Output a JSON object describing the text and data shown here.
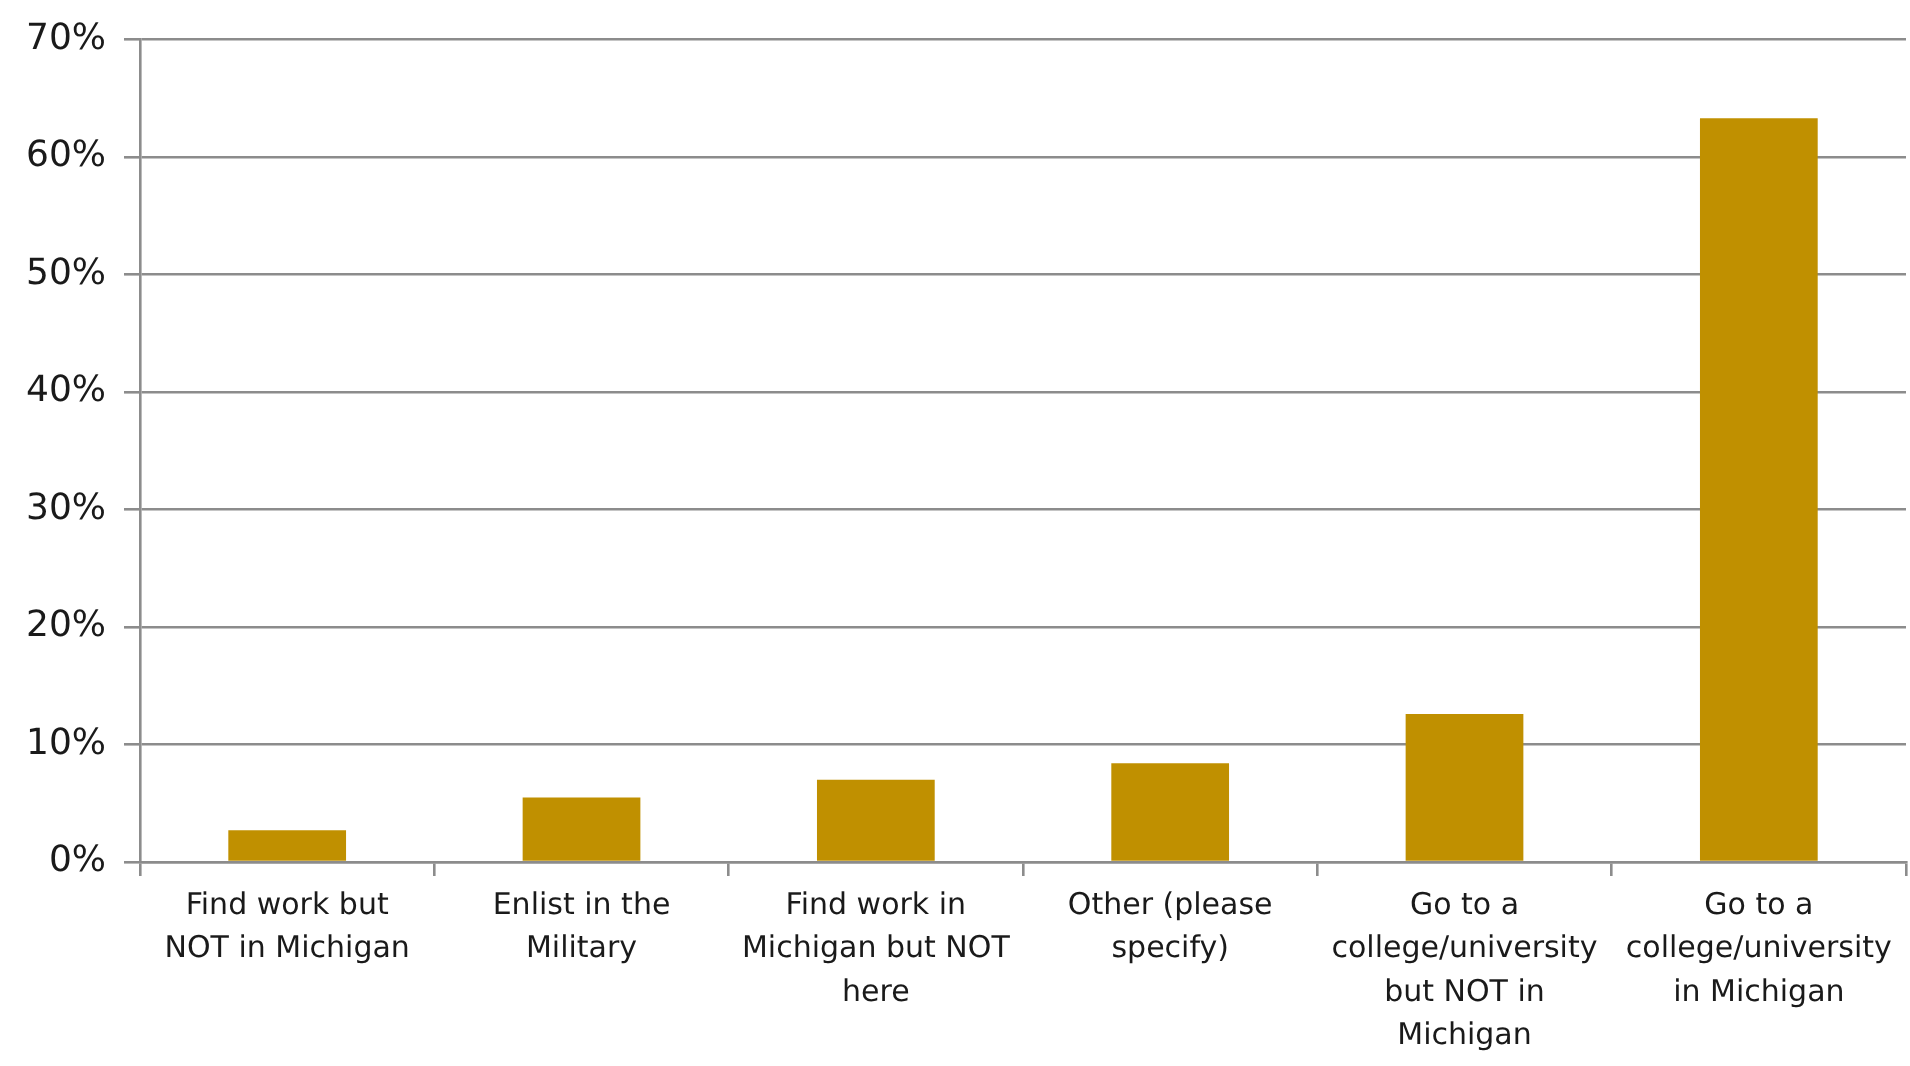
{
  "chart_data": {
    "type": "bar",
    "categories": [
      "Find work but NOT in Michigan",
      "Enlist in the Military",
      "Find work in Michigan but NOT here",
      "Other (please specify)",
      "Go to a college/university but NOT in Michigan",
      "Go to a college/university in Michigan"
    ],
    "values": [
      2.7,
      5.5,
      7.0,
      8.4,
      12.6,
      63.3
    ],
    "color": "#c09000",
    "ylim": [
      0,
      70
    ],
    "yticks": [
      {
        "value": 0,
        "label": "0%"
      },
      {
        "value": 10,
        "label": "10%"
      },
      {
        "value": 20,
        "label": "20%"
      },
      {
        "value": 30,
        "label": "30%"
      },
      {
        "value": 40,
        "label": "40%"
      },
      {
        "value": 50,
        "label": "50%"
      },
      {
        "value": 60,
        "label": "60%"
      },
      {
        "value": 70,
        "label": "70%"
      }
    ],
    "grid": "y"
  }
}
